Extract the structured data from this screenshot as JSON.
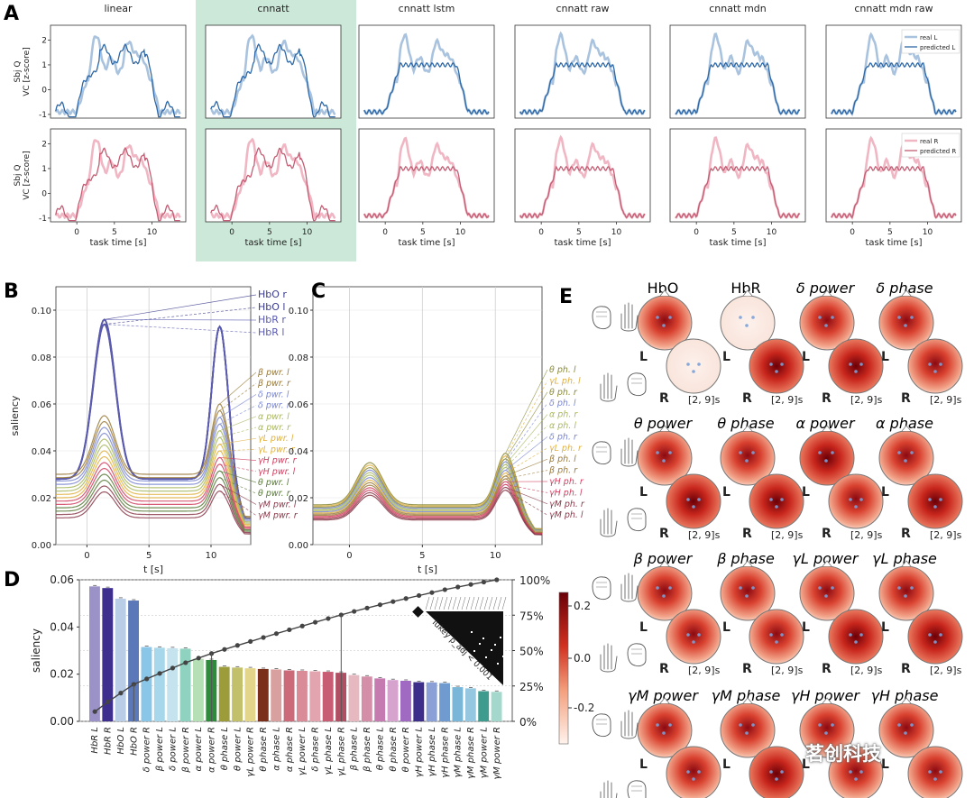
{
  "panel_labels": [
    "A",
    "B",
    "C",
    "D",
    "E"
  ],
  "panelA": {
    "columns": [
      "linear",
      "cnnatt",
      "cnnatt_lstm",
      "cnnatt_raw",
      "cnnatt_mdn",
      "cnnatt_mdn_raw"
    ],
    "highlight_column": 1,
    "highlight_color": "#cce8d8",
    "ylabel_line1": "Sbj Q",
    "ylabel_line2": "VC [z-score]",
    "xlabel": "task time [s]",
    "yticks": [
      "2",
      "1",
      "0",
      "-1"
    ],
    "xticks": [
      "0",
      "5",
      "10"
    ],
    "legend_top": [
      "real L",
      "predicted L"
    ],
    "legend_bottom": [
      "real R",
      "predicted R"
    ],
    "color_L_real": "#a9c3df",
    "color_L_pred": "#2e68a6",
    "color_R_real": "#f0b6c3",
    "color_R_pred": "#c25d73"
  },
  "panelB": {
    "xlabel": "t [s]",
    "ylabel": "saliency",
    "yticks": [
      "0.10",
      "0.08",
      "0.06",
      "0.04",
      "0.02",
      "0.00"
    ],
    "xticks": [
      "0",
      "5",
      "10"
    ],
    "labels": [
      {
        "text": "HbO r",
        "color": "#3a3a8c"
      },
      {
        "text": "HbO l",
        "color": "#3a3a8c"
      },
      {
        "text": "HbR r",
        "color": "#5a5ab0"
      },
      {
        "text": "HbR l",
        "color": "#5a5ab0"
      },
      {
        "text": "β pwr. l",
        "color": "#9a7a3a"
      },
      {
        "text": "β pwr. r",
        "color": "#9a7a3a"
      },
      {
        "text": "δ pwr. l",
        "color": "#7a86d0"
      },
      {
        "text": "δ pwr. r",
        "color": "#7a86d0"
      },
      {
        "text": "α pwr. l",
        "color": "#a8b860"
      },
      {
        "text": "α pwr. r",
        "color": "#a8b860"
      },
      {
        "text": "γL pwr. l",
        "color": "#e0b040"
      },
      {
        "text": "γL pwr. r",
        "color": "#e0b040"
      },
      {
        "text": "γH pwr. r",
        "color": "#d04060"
      },
      {
        "text": "γH pwr. l",
        "color": "#d04060"
      },
      {
        "text": "θ pwr. l",
        "color": "#5a7a3a"
      },
      {
        "text": "θ pwr. r",
        "color": "#5a7a3a"
      },
      {
        "text": "γM pwr. l",
        "color": "#8a3a4a"
      },
      {
        "text": "γM pwr. r",
        "color": "#8a3a4a"
      }
    ]
  },
  "panelC": {
    "xlabel": "t [s]",
    "yticks": [
      "0.10",
      "0.08",
      "0.06",
      "0.04",
      "0.02",
      "0.00"
    ],
    "xticks": [
      "0",
      "5",
      "10"
    ],
    "labels": [
      {
        "text": "θ ph. l",
        "color": "#8a8a3a"
      },
      {
        "text": "γL ph. l",
        "color": "#e0b040"
      },
      {
        "text": "θ ph. r",
        "color": "#8a8a3a"
      },
      {
        "text": "δ ph. l",
        "color": "#7a86d0"
      },
      {
        "text": "α ph. r",
        "color": "#a8b860"
      },
      {
        "text": "α ph. l",
        "color": "#a8b860"
      },
      {
        "text": "δ ph. r",
        "color": "#7a86d0"
      },
      {
        "text": "γL ph. r",
        "color": "#e0b040"
      },
      {
        "text": "β ph. l",
        "color": "#9a7a3a"
      },
      {
        "text": "β ph. r",
        "color": "#9a7a3a"
      },
      {
        "text": "γH ph. r",
        "color": "#d04060"
      },
      {
        "text": "γH ph. l",
        "color": "#d04060"
      },
      {
        "text": "γM ph. r",
        "color": "#8a3a4a"
      },
      {
        "text": "γM ph. l",
        "color": "#8a3a4a"
      }
    ]
  },
  "panelD": {
    "ylabel": "saliency",
    "yticks": [
      "0.06",
      "0.04",
      "0.02",
      "0.00"
    ],
    "y2ticks": [
      "100%",
      "75%",
      "50%",
      "25%",
      "0%"
    ],
    "inset_label": "Tukey p_adj < 0.001",
    "bars": [
      {
        "label": "HbR L",
        "value": 0.0572,
        "color": "#9b92c8"
      },
      {
        "label": "HbR R",
        "value": 0.0565,
        "color": "#3e2f8f"
      },
      {
        "label": "HbO L",
        "value": 0.052,
        "color": "#b9cde6"
      },
      {
        "label": "HbO R",
        "value": 0.0512,
        "color": "#5b78b8"
      },
      {
        "label": "δ power R",
        "value": 0.0315,
        "color": "#8ac6e8"
      },
      {
        "label": "β power L",
        "value": 0.0312,
        "color": "#a7d7ea"
      },
      {
        "label": "δ power L",
        "value": 0.031,
        "color": "#c5e3ef"
      },
      {
        "label": "β power R",
        "value": 0.0308,
        "color": "#8fd2c0"
      },
      {
        "label": "α power L",
        "value": 0.0265,
        "color": "#b5e0b5"
      },
      {
        "label": "α power R",
        "value": 0.026,
        "color": "#2e8b3c"
      },
      {
        "label": "θ phase L",
        "value": 0.0231,
        "color": "#9c9c3a"
      },
      {
        "label": "θ power L",
        "value": 0.0228,
        "color": "#c2c06a"
      },
      {
        "label": "γL power R",
        "value": 0.0225,
        "color": "#e3d68a"
      },
      {
        "label": "θ phase R",
        "value": 0.0222,
        "color": "#7a2f1a"
      },
      {
        "label": "α phase L",
        "value": 0.022,
        "color": "#d9a0a0"
      },
      {
        "label": "α phase R",
        "value": 0.0216,
        "color": "#cc6a7a"
      },
      {
        "label": "γL power L",
        "value": 0.0214,
        "color": "#d98b97"
      },
      {
        "label": "δ phase R",
        "value": 0.0212,
        "color": "#e2a5b0"
      },
      {
        "label": "γL phase L",
        "value": 0.021,
        "color": "#c85c74"
      },
      {
        "label": "γL phase R",
        "value": 0.0206,
        "color": "#b04e63"
      },
      {
        "label": "β phase L",
        "value": 0.0196,
        "color": "#e6b8c0"
      },
      {
        "label": "β phase R",
        "value": 0.019,
        "color": "#d58ea8"
      },
      {
        "label": "θ phase L",
        "value": 0.0182,
        "color": "#c67bb0"
      },
      {
        "label": "θ phase R",
        "value": 0.0175,
        "color": "#d6a3cf"
      },
      {
        "label": "θ power R",
        "value": 0.0172,
        "color": "#a06ac2"
      },
      {
        "label": "γH power L",
        "value": 0.0166,
        "color": "#3c2e8a"
      },
      {
        "label": "γH phase L",
        "value": 0.0165,
        "color": "#8ba0d6"
      },
      {
        "label": "γH phase R",
        "value": 0.0162,
        "color": "#6f9bd0"
      },
      {
        "label": "γM phase L",
        "value": 0.0145,
        "color": "#7ab6d8"
      },
      {
        "label": "γM phase R",
        "value": 0.014,
        "color": "#95c8e0"
      },
      {
        "label": "γM power L",
        "value": 0.0128,
        "color": "#3e9b8e"
      },
      {
        "label": "γM power R",
        "value": 0.0125,
        "color": "#a4d8cc"
      }
    ]
  },
  "panelE": {
    "time_label": "[2, 9]s",
    "hand_L": "L",
    "hand_R": "R",
    "colorbar_ticks": [
      "0.2",
      "0.0",
      "-0.2"
    ],
    "rows": [
      [
        "HbO",
        "HbR",
        "δ power",
        "δ phase"
      ],
      [
        "θ power",
        "θ phase",
        "α power",
        "α phase"
      ],
      [
        "β power",
        "β phase",
        "γL power",
        "γL phase"
      ],
      [
        "γM power",
        "γM phase",
        "γH power",
        "γH phase"
      ]
    ]
  },
  "watermark": "茗创科技"
}
